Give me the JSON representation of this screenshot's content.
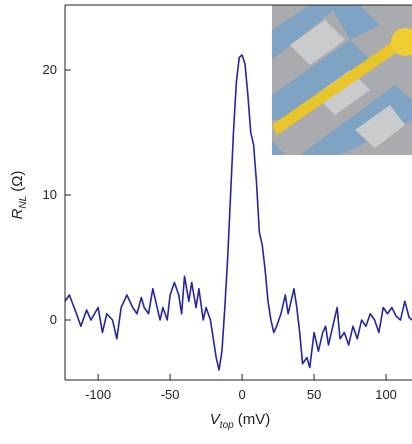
{
  "chart_data": {
    "type": "line",
    "x_label": {
      "main": "V",
      "sub": "top",
      "unit": "(mV)"
    },
    "y_label": {
      "main": "R",
      "sub": "NL",
      "unit": "(Ω)"
    },
    "x": [
      -123,
      -120,
      -115,
      -112,
      -108,
      -105,
      -100,
      -97,
      -94,
      -90,
      -87,
      -84,
      -80,
      -76,
      -73,
      -70,
      -68,
      -65,
      -62,
      -60,
      -57,
      -55,
      -52,
      -50,
      -47,
      -44,
      -42,
      -40,
      -37,
      -35,
      -32,
      -30,
      -27,
      -25,
      -22,
      -20,
      -18,
      -16,
      -14,
      -12,
      -10,
      -8,
      -6,
      -4,
      -2,
      0,
      2,
      4,
      6,
      8,
      10,
      12,
      14,
      16,
      18,
      20,
      22,
      24,
      27,
      30,
      32,
      34,
      36,
      38,
      40,
      42,
      45,
      47,
      50,
      53,
      56,
      58,
      60,
      63,
      66,
      68,
      71,
      74,
      77,
      80,
      83,
      86,
      89,
      92,
      95,
      98,
      101,
      104,
      107,
      110,
      113,
      116,
      118
    ],
    "values": [
      1.5,
      2,
      0.5,
      -0.5,
      0.8,
      0,
      1,
      -1,
      0.5,
      0,
      -1.5,
      1,
      2,
      1,
      0.5,
      1.8,
      1,
      0.5,
      2.5,
      1.5,
      0,
      1,
      0,
      2,
      3,
      2,
      0.5,
      3.5,
      1.5,
      3,
      1,
      2.5,
      0,
      1,
      0,
      -1.5,
      -3,
      -4,
      -2.5,
      1,
      5,
      10,
      15,
      19,
      21,
      21.2,
      20.5,
      18,
      15,
      14,
      11,
      7,
      6,
      4,
      1.5,
      0,
      -1,
      -0.5,
      0.5,
      2,
      0.5,
      1.5,
      2.5,
      1,
      -1,
      -3.5,
      -3,
      -3.8,
      -1,
      -2.5,
      -1,
      -0.5,
      -2,
      -0.5,
      1,
      -1.5,
      -1,
      -2,
      -0.5,
      -1.5,
      0,
      -0.5,
      0.5,
      0,
      -1,
      1,
      0.5,
      1,
      0.3,
      0,
      1.5,
      0.2,
      0
    ],
    "color": "#2424a6",
    "xlim": [
      -123,
      118
    ],
    "ylim": [
      -4.8,
      25.2
    ],
    "xticks": [
      -100,
      -50,
      0,
      50,
      100
    ],
    "yticks": [
      0,
      10,
      20
    ]
  }
}
